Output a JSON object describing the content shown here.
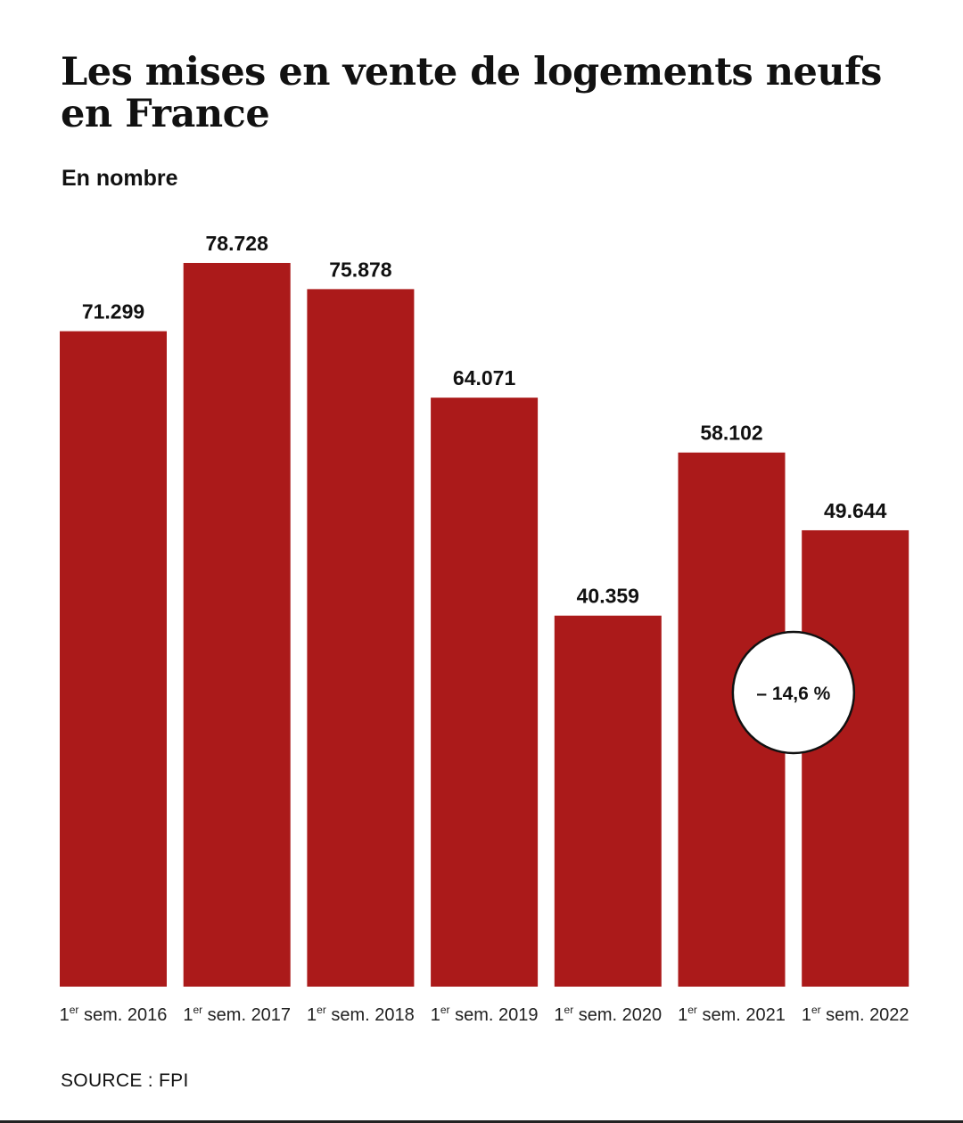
{
  "title": "Les mises en vente de logements neufs en France",
  "subtitle": "En nombre",
  "source": "SOURCE : FPI",
  "colors": {
    "bar": "#ab1a1a",
    "badge_fill": "#ffffff",
    "badge_stroke": "#111111"
  },
  "chart_data": {
    "type": "bar",
    "title": "Les mises en vente de logements neufs en France",
    "subtitle": "En nombre",
    "categories": [
      {
        "ordinal": "1",
        "sup": "er",
        "rest": " sem. 2016"
      },
      {
        "ordinal": "1",
        "sup": "er",
        "rest": " sem. 2017"
      },
      {
        "ordinal": "1",
        "sup": "er",
        "rest": " sem. 2018"
      },
      {
        "ordinal": "1",
        "sup": "er",
        "rest": " sem. 2019"
      },
      {
        "ordinal": "1",
        "sup": "er",
        "rest": " sem. 2020"
      },
      {
        "ordinal": "1",
        "sup": "er",
        "rest": " sem. 2021"
      },
      {
        "ordinal": "1",
        "sup": "er",
        "rest": " sem. 2022"
      }
    ],
    "values": [
      71299,
      78728,
      75878,
      64071,
      40359,
      58102,
      49644
    ],
    "value_labels": [
      "71.299",
      "78.728",
      "75.878",
      "64.071",
      "40.359",
      "58.102",
      "49.644"
    ],
    "ylim": [
      0,
      85000
    ],
    "grid": false,
    "annotation": {
      "text": "– 14,6 %",
      "between": [
        "1er sem. 2021",
        "1er sem. 2022"
      ]
    }
  }
}
